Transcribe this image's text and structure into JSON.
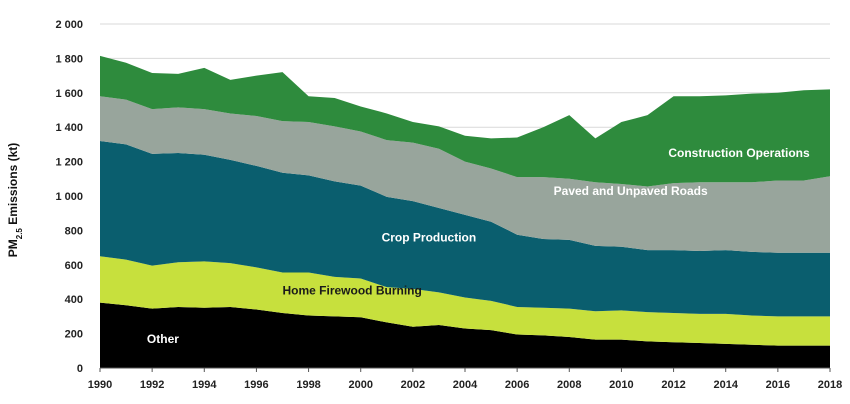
{
  "chart_data": {
    "type": "area",
    "stacked": true,
    "ylabel_main": "PM",
    "ylabel_sub": "2.5",
    "ylabel_rest": " Emissions (kt)",
    "ylim": [
      0,
      2000
    ],
    "yticks": [
      0,
      200,
      400,
      600,
      800,
      1000,
      1200,
      1400,
      1600,
      1800,
      2000
    ],
    "ytick_labels": [
      "0",
      "200",
      "400",
      "600",
      "800",
      "1 000",
      "1 200",
      "1 400",
      "1 600",
      "1 800",
      "2 000"
    ],
    "xlim": [
      1990,
      2018
    ],
    "xticks": [
      1990,
      1992,
      1994,
      1996,
      1998,
      2000,
      2002,
      2004,
      2006,
      2008,
      2010,
      2012,
      2014,
      2016,
      2018
    ],
    "x": [
      1990,
      1991,
      1992,
      1993,
      1994,
      1995,
      1996,
      1997,
      1998,
      1999,
      2000,
      2001,
      2002,
      2003,
      2004,
      2005,
      2006,
      2007,
      2008,
      2009,
      2010,
      2011,
      2012,
      2013,
      2014,
      2015,
      2016,
      2017,
      2018
    ],
    "series": [
      {
        "name": "Other",
        "color": "#000000",
        "label_color": "#ffffff",
        "values": [
          380,
          365,
          345,
          355,
          350,
          355,
          340,
          320,
          305,
          300,
          295,
          265,
          240,
          250,
          230,
          220,
          195,
          190,
          180,
          165,
          165,
          155,
          150,
          145,
          140,
          135,
          130,
          130,
          130
        ]
      },
      {
        "name": "Home Firewood Burning",
        "color": "#c7e03d",
        "label_color": "#1a1a1a",
        "values": [
          270,
          265,
          250,
          260,
          270,
          255,
          245,
          235,
          250,
          230,
          225,
          205,
          220,
          190,
          180,
          170,
          160,
          160,
          165,
          165,
          170,
          170,
          170,
          170,
          175,
          170,
          170,
          170,
          170
        ]
      },
      {
        "name": "Crop Production",
        "color": "#0a5e6e",
        "label_color": "#ffffff",
        "values": [
          670,
          670,
          650,
          635,
          620,
          600,
          590,
          580,
          565,
          555,
          540,
          525,
          510,
          490,
          480,
          460,
          420,
          400,
          400,
          380,
          370,
          360,
          365,
          365,
          370,
          370,
          370,
          370,
          370
        ]
      },
      {
        "name": "Paved and Unpaved Roads",
        "color": "#98a59c",
        "label_color": "#ffffff",
        "values": [
          260,
          260,
          260,
          265,
          265,
          270,
          290,
          300,
          310,
          320,
          315,
          330,
          340,
          345,
          310,
          310,
          335,
          360,
          355,
          370,
          365,
          370,
          390,
          400,
          395,
          405,
          420,
          420,
          445
        ]
      },
      {
        "name": "Construction Operations",
        "color": "#2e8b3d",
        "label_color": "#ffffff",
        "values": [
          235,
          215,
          210,
          195,
          240,
          195,
          235,
          285,
          150,
          165,
          145,
          155,
          120,
          130,
          150,
          175,
          230,
          290,
          370,
          255,
          360,
          415,
          505,
          500,
          505,
          515,
          510,
          525,
          505
        ]
      }
    ],
    "labels": [
      {
        "text": "Other",
        "series": "Other",
        "at_year": 1991.8,
        "at_value": 170
      },
      {
        "text": "Home Firewood Burning",
        "series": "Home Firewood Burning",
        "at_year": 1997.0,
        "at_value": 450
      },
      {
        "text": "Crop Production",
        "series": "Crop Production",
        "at_year": 2000.8,
        "at_value": 760
      },
      {
        "text": "Paved and Unpaved Roads",
        "series": "Paved and Unpaved Roads",
        "at_year": 2007.4,
        "at_value": 1030
      },
      {
        "text": "Construction Operations",
        "series": "Construction Operations",
        "at_year": 2011.8,
        "at_value": 1250
      }
    ],
    "grid": "horizontal",
    "legend": "none"
  }
}
